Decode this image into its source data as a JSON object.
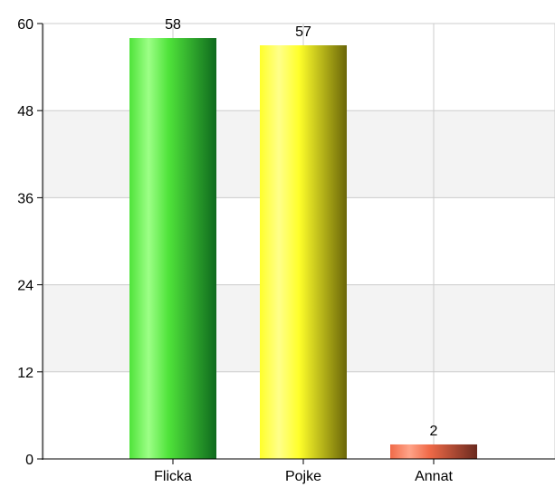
{
  "chart_data": {
    "type": "bar",
    "categories": [
      "Flicka",
      "Pojke",
      "Annat"
    ],
    "values": [
      58,
      57,
      2
    ],
    "data_labels": [
      "58",
      "57",
      "2"
    ],
    "title": "",
    "xlabel": "",
    "ylabel": "",
    "ylim": [
      0,
      60
    ],
    "yticks": [
      "0",
      "12",
      "24",
      "36",
      "48",
      "60"
    ],
    "grid": true,
    "legend": "none",
    "bar_colors": [
      {
        "light": "#9cff86",
        "mid": "#4fe33a",
        "dark": "#0f6a1e"
      },
      {
        "light": "#ffff8a",
        "mid": "#ffff2a",
        "dark": "#6a6608"
      },
      {
        "light": "#ffa489",
        "mid": "#f06a48",
        "dark": "#6a2a1f"
      }
    ],
    "band_color": "#f3f3f3",
    "grid_color": "#cccccc",
    "axis_color": "#000000"
  }
}
